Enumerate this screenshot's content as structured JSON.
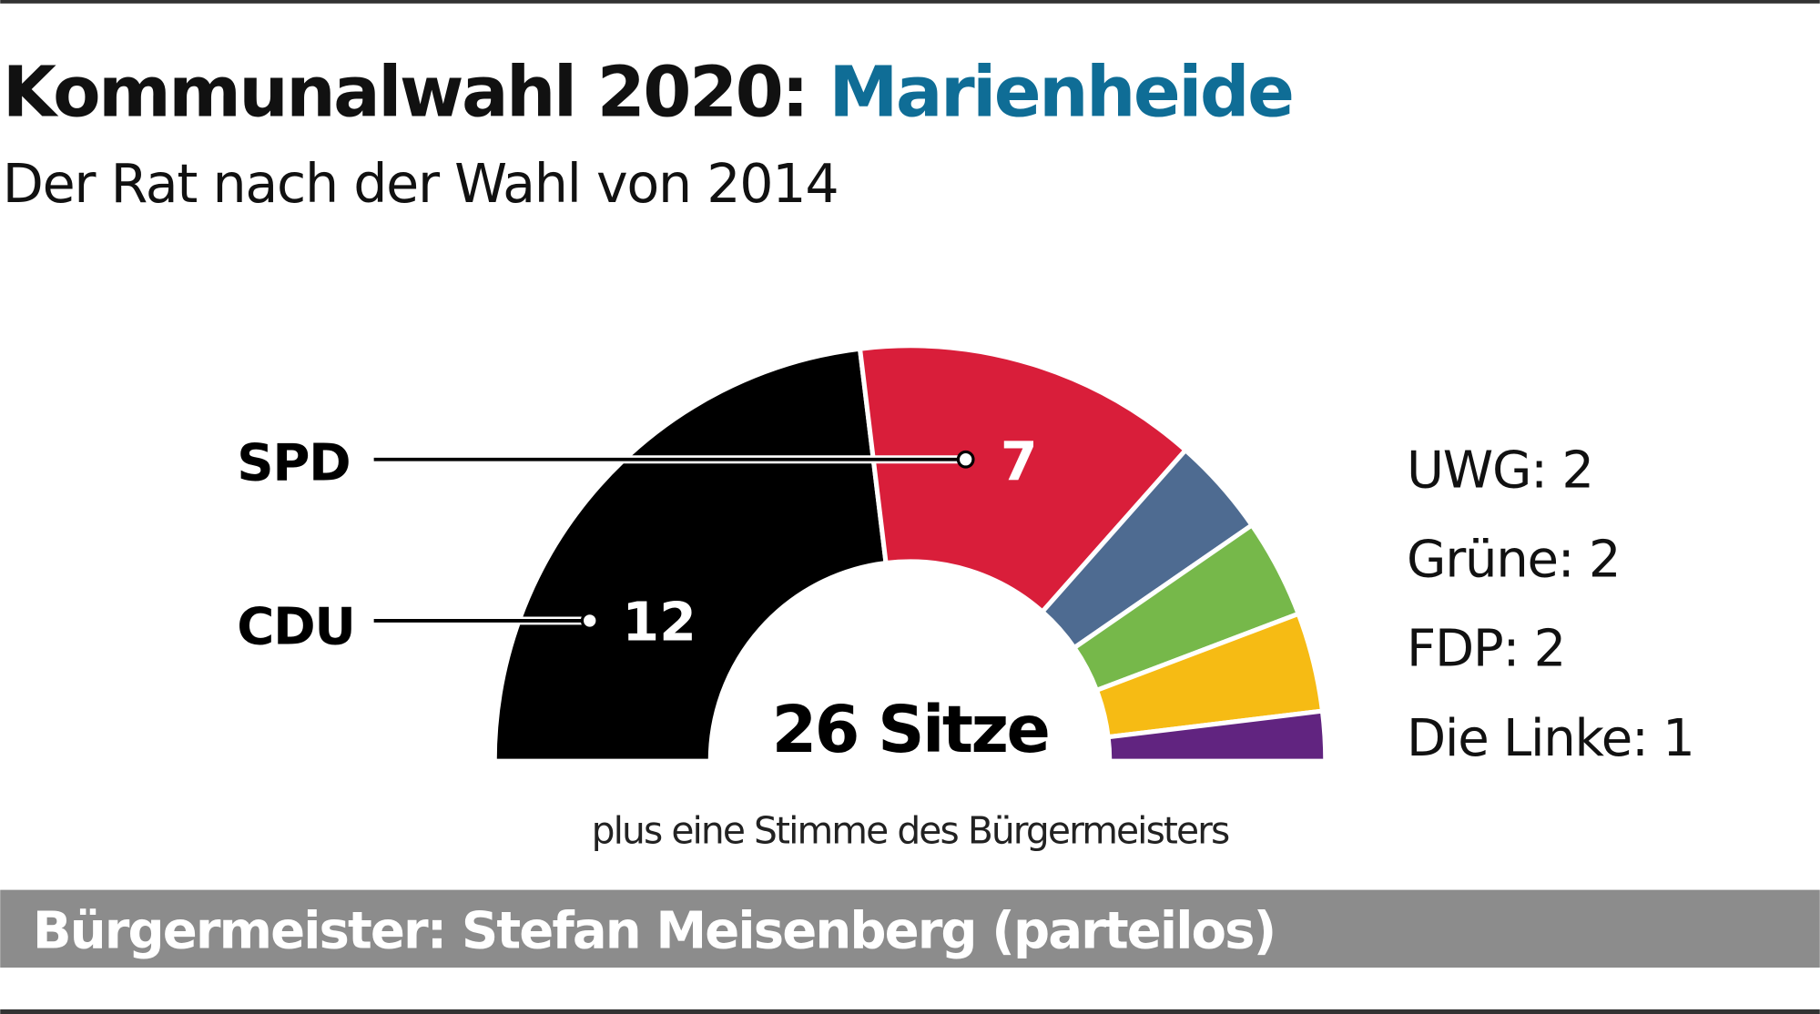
{
  "title": {
    "prefix": "Kommunalwahl 2020:",
    "place": "Marienheide"
  },
  "subtitle": "Der Rat nach der Wahl von 2014",
  "center_label": "26 Sitze",
  "note": "plus eine Stimme des Bürgermeisters",
  "footer": "Bürgermeister: Stefan Meisenberg (parteilos)",
  "colors": {
    "title_accent": "#0f6d96",
    "footer_bg": "#8c8c8c"
  },
  "chart_data": {
    "type": "pie",
    "subtype": "parliament-semicircle",
    "total": 26,
    "series": [
      {
        "name": "CDU",
        "value": 12,
        "color": "#000000",
        "label": "12",
        "callout": "CDU"
      },
      {
        "name": "SPD",
        "value": 7,
        "color": "#d91e3a",
        "label": "7",
        "callout": "SPD"
      },
      {
        "name": "UWG",
        "value": 2,
        "color": "#4e6b91",
        "legend": "UWG: 2"
      },
      {
        "name": "Grüne",
        "value": 2,
        "color": "#76b84a",
        "legend": "Grüne: 2"
      },
      {
        "name": "FDP",
        "value": 2,
        "color": "#f6bb14",
        "legend": "FDP: 2"
      },
      {
        "name": "Die Linke",
        "value": 1,
        "color": "#612480",
        "legend": "Die Linke: 1"
      }
    ]
  }
}
